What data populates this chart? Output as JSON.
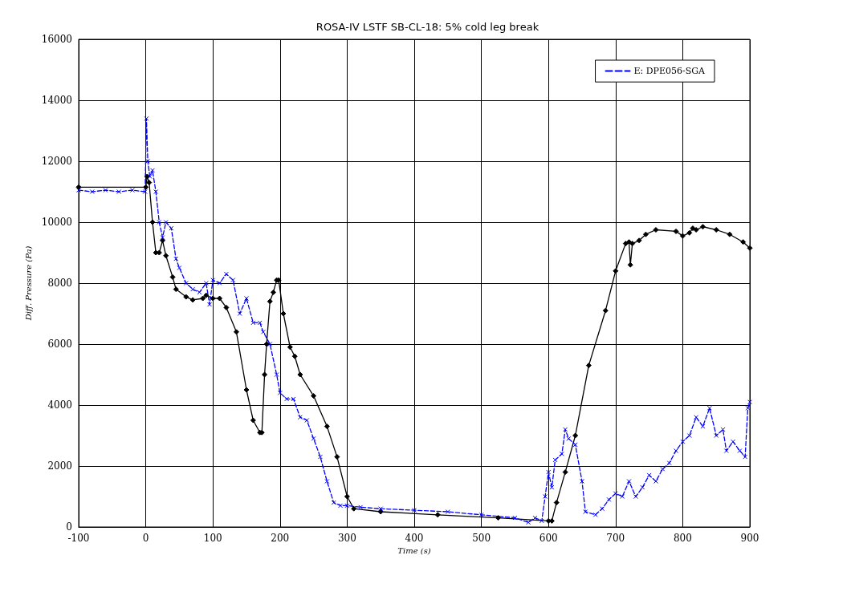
{
  "chart_data": {
    "type": "line",
    "title": "ROSA-IV LSTF SB-CL-18: 5% cold leg break",
    "xlabel": "Time (s)",
    "ylabel": "Diff. Pressure (Pa)",
    "xlim": [
      -100,
      900
    ],
    "xticks": [
      -100,
      0,
      100,
      200,
      300,
      400,
      500,
      600,
      700,
      800,
      900
    ],
    "ylim": [
      0,
      16000
    ],
    "yticks": [
      0,
      2000,
      4000,
      6000,
      8000,
      10000,
      12000,
      14000,
      16000
    ],
    "grid": true,
    "legend": "top right",
    "series": [
      {
        "color": "#000000",
        "marker": "diamond",
        "line_style": "solid",
        "x": [
          -100,
          0,
          2,
          5,
          10,
          15,
          20,
          25,
          30,
          40,
          45,
          60,
          70,
          85,
          90,
          100,
          110,
          120,
          135,
          150,
          160,
          170,
          173,
          177,
          180,
          185,
          190,
          195,
          198,
          205,
          215,
          222,
          230,
          250,
          270,
          285,
          300,
          310,
          350,
          435,
          525,
          600,
          605,
          612,
          625,
          640,
          660,
          685,
          700,
          715,
          720,
          722,
          725,
          735,
          745,
          760,
          790,
          800,
          810,
          815,
          820,
          830,
          850,
          870,
          890,
          900
        ],
        "values": [
          11150,
          11150,
          11500,
          11300,
          10000,
          9000,
          9000,
          9400,
          8900,
          8200,
          7800,
          7550,
          7450,
          7500,
          7600,
          7500,
          7500,
          7200,
          6400,
          4500,
          3500,
          3100,
          3100,
          5000,
          6000,
          7400,
          7700,
          8100,
          8100,
          7000,
          5900,
          5600,
          5000,
          4300,
          3300,
          2300,
          1000,
          600,
          500,
          400,
          300,
          200,
          200,
          800,
          1800,
          3000,
          5300,
          7100,
          8400,
          9300,
          9350,
          8600,
          9300,
          9400,
          9600,
          9750,
          9700,
          9550,
          9650,
          9800,
          9750,
          9850,
          9750,
          9600,
          9350,
          9150
        ]
      },
      {
        "name": "E: DPE056-SGA",
        "color": "#0000ff",
        "marker": "cross",
        "line_style": "dashed",
        "x": [
          -100,
          -80,
          -60,
          -40,
          -20,
          -1,
          1,
          3,
          6,
          10,
          15,
          20,
          25,
          30,
          38,
          45,
          50,
          60,
          70,
          80,
          90,
          95,
          100,
          110,
          120,
          130,
          140,
          150,
          160,
          170,
          175,
          185,
          195,
          200,
          210,
          220,
          230,
          240,
          250,
          260,
          270,
          280,
          290,
          300,
          320,
          350,
          400,
          450,
          500,
          550,
          570,
          580,
          590,
          595,
          600,
          605,
          610,
          620,
          625,
          630,
          640,
          650,
          655,
          670,
          680,
          690,
          700,
          710,
          720,
          730,
          740,
          750,
          760,
          770,
          780,
          790,
          800,
          810,
          820,
          830,
          840,
          850,
          860,
          865,
          875,
          885,
          893,
          897,
          900
        ],
        "values": [
          11050,
          11000,
          11050,
          11000,
          11050,
          11000,
          13400,
          12000,
          11500,
          11700,
          11000,
          10000,
          9500,
          10000,
          9800,
          8800,
          8500,
          8000,
          7800,
          7700,
          8000,
          7300,
          8100,
          8000,
          8300,
          8100,
          7000,
          7500,
          6700,
          6700,
          6400,
          6000,
          5000,
          4400,
          4200,
          4200,
          3600,
          3500,
          2900,
          2300,
          1500,
          800,
          700,
          700,
          650,
          600,
          550,
          500,
          400,
          300,
          150,
          300,
          200,
          1000,
          1800,
          1300,
          2200,
          2400,
          3200,
          2900,
          2700,
          1500,
          500,
          400,
          600,
          900,
          1100,
          1000,
          1500,
          1000,
          1300,
          1700,
          1500,
          1900,
          2100,
          2500,
          2800,
          3000,
          3600,
          3300,
          3900,
          3000,
          3200,
          2500,
          2800,
          2500,
          2300,
          3900,
          4100
        ]
      }
    ]
  }
}
